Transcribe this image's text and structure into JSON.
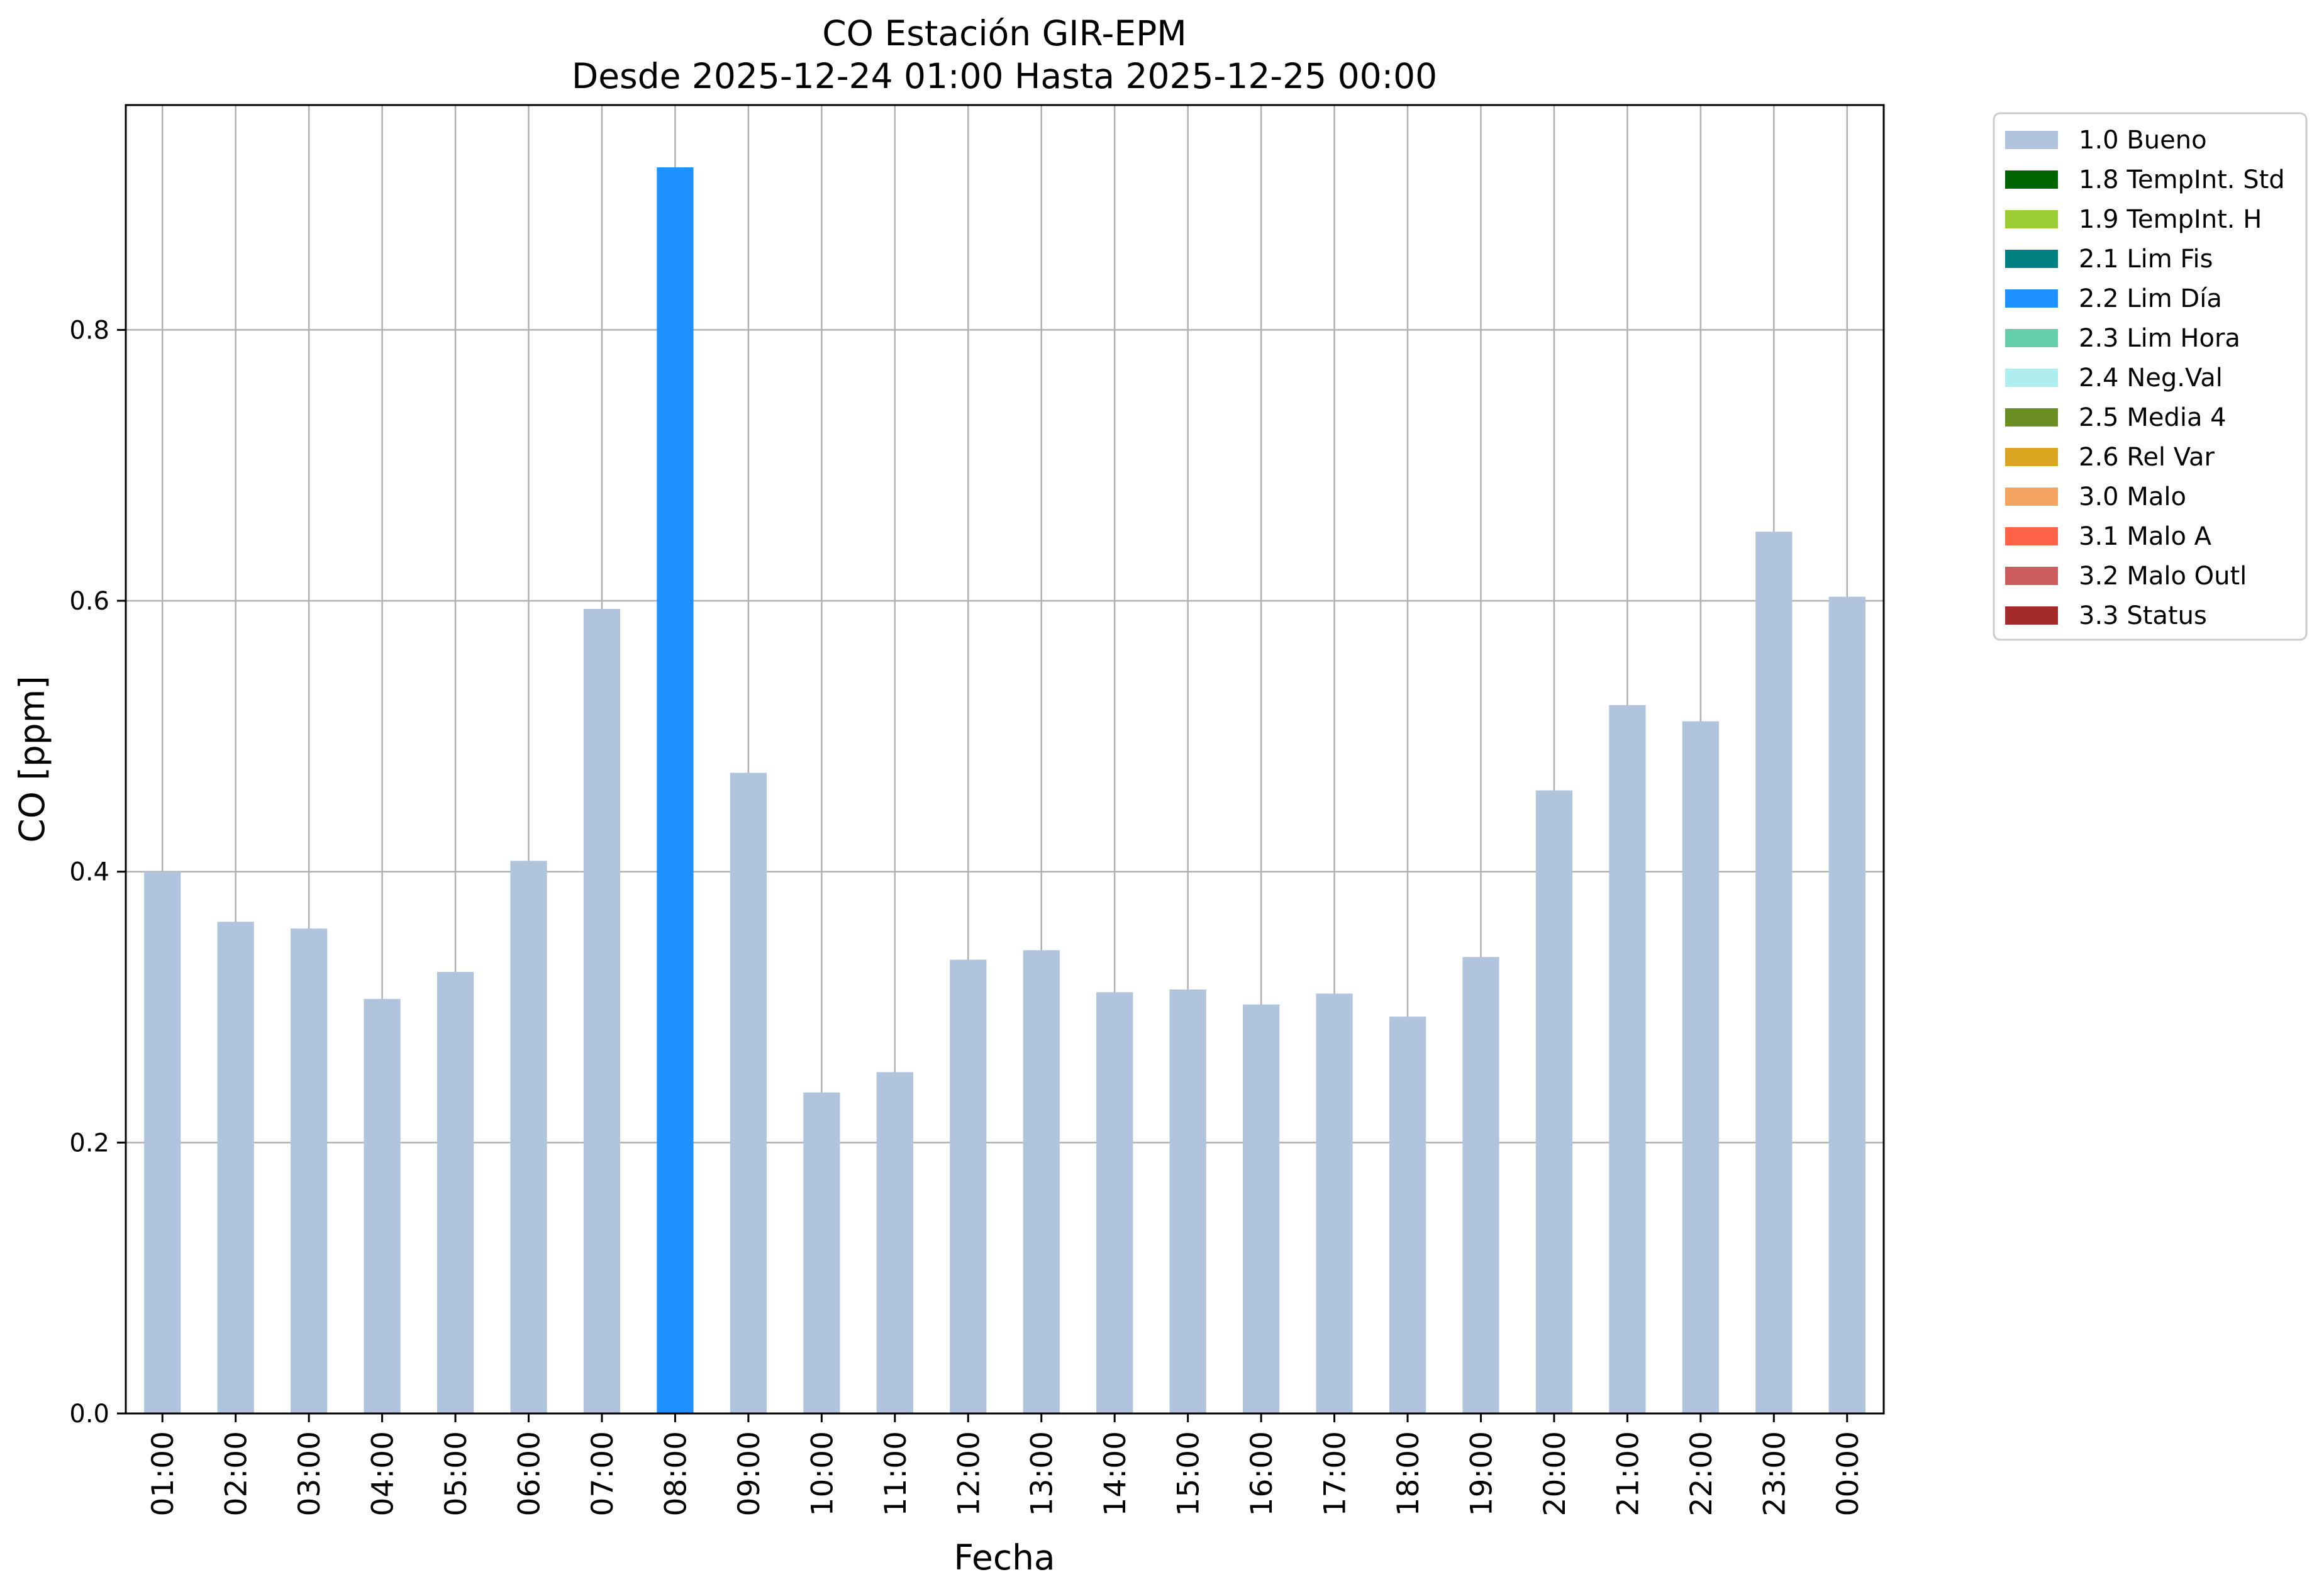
{
  "chart_data": {
    "type": "bar",
    "title": "CO Estación GIR-EPM",
    "subtitle": "Desde 2025-12-24 01:00 Hasta 2025-12-25 00:00",
    "xlabel": "Fecha",
    "ylabel": "CO [ppm]",
    "ylim": [
      0,
      0.966
    ],
    "yticks": [
      "0.0",
      "0.2",
      "0.4",
      "0.6",
      "0.8"
    ],
    "grid": true,
    "legend_position": "outside-right",
    "categories": [
      "01:00",
      "02:00",
      "03:00",
      "04:00",
      "05:00",
      "06:00",
      "07:00",
      "08:00",
      "09:00",
      "10:00",
      "11:00",
      "12:00",
      "13:00",
      "14:00",
      "15:00",
      "16:00",
      "17:00",
      "18:00",
      "19:00",
      "20:00",
      "21:00",
      "22:00",
      "23:00",
      "00:00"
    ],
    "values": [
      0.4,
      0.363,
      0.358,
      0.306,
      0.326,
      0.408,
      0.594,
      0.92,
      0.473,
      0.237,
      0.252,
      0.335,
      0.342,
      0.311,
      0.313,
      0.302,
      0.31,
      0.293,
      0.337,
      0.46,
      0.523,
      0.511,
      0.651,
      0.603
    ],
    "bar_flags": [
      "1.0 Bueno",
      "1.0 Bueno",
      "1.0 Bueno",
      "1.0 Bueno",
      "1.0 Bueno",
      "1.0 Bueno",
      "1.0 Bueno",
      "2.2 Lim Día",
      "1.0 Bueno",
      "1.0 Bueno",
      "1.0 Bueno",
      "1.0 Bueno",
      "1.0 Bueno",
      "1.0 Bueno",
      "1.0 Bueno",
      "1.0 Bueno",
      "1.0 Bueno",
      "1.0 Bueno",
      "1.0 Bueno",
      "1.0 Bueno",
      "1.0 Bueno",
      "1.0 Bueno",
      "1.0 Bueno",
      "1.0 Bueno"
    ],
    "legend": [
      {
        "label": "1.0 Bueno",
        "color": "#b0c4de"
      },
      {
        "label": "1.8 TempInt. Std",
        "color": "#006400"
      },
      {
        "label": "1.9 TempInt. H",
        "color": "#9acd32"
      },
      {
        "label": "2.1 Lim Fis",
        "color": "#008080"
      },
      {
        "label": "2.2 Lim Día",
        "color": "#1e90ff"
      },
      {
        "label": "2.3 Lim Hora",
        "color": "#66cdaa"
      },
      {
        "label": "2.4 Neg.Val",
        "color": "#afeeee"
      },
      {
        "label": "2.5 Media 4",
        "color": "#6b8e23"
      },
      {
        "label": "2.6 Rel Var",
        "color": "#daa520"
      },
      {
        "label": "3.0 Malo",
        "color": "#f4a460"
      },
      {
        "label": "3.1 Malo A",
        "color": "#ff6347"
      },
      {
        "label": "3.2 Malo Outl",
        "color": "#cd5c5c"
      },
      {
        "label": "3.3 Status",
        "color": "#a52a2a"
      }
    ],
    "colors": {
      "grid": "#b0b0b0",
      "axis": "#000000"
    }
  }
}
